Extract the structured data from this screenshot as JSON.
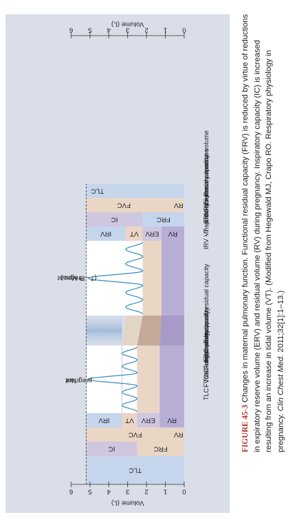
{
  "axis": {
    "title_left": "Volume (L)",
    "title_right": "Volume (L)",
    "ticks": [
      "0",
      "1",
      "2",
      "3",
      "4",
      "5",
      "6"
    ]
  },
  "panels": {
    "not_pregnant": {
      "label_line1": "Not",
      "label_line2": "pregnant",
      "boxes": [
        "IRV",
        "IC",
        "VT",
        "FVC",
        "ERV",
        "FRC",
        "RV",
        "RV",
        "TLC"
      ]
    },
    "pregnant": {
      "label_line1": "Pregnant",
      "label_line2": "(7 – 9 Mos.)",
      "boxes": [
        "IRV",
        "IC",
        "VT",
        "FVC",
        "ERV",
        "FRC",
        "RV",
        "RV",
        "TLC"
      ]
    }
  },
  "legend": {
    "left": [
      "TLC - Total lung capacity",
      "FVC - Forced vital capacity",
      "IC - Inspiratory capacity",
      "FRC - Functional residual capacity"
    ],
    "right": [
      "IRV - Inspiratory reserve capacity",
      "VT - Tidal volume",
      "ERV - Expiratory reserve volume",
      "RV - Residual volume"
    ]
  },
  "caption": {
    "label": "FIGURE 45-3",
    "text": " Changes in maternal pulmonary function. Functional residual capacity (FRV) is reduced by virtue of reductions in expiratory reserve volume (ERV) and residual volume (RV) during pregnancy. Inspiratory capacity (IC) is increased resulting from an increase in tidal volume (VT). (Modified from Hegewald MJ, Crapo RO. Respiratory physiology in pregnancy. ",
    "journal": "Clin Chest Med.",
    "tail": " 2011;32[1]:1–13.)"
  },
  "colors": {
    "panel_bg": "#d9dee8",
    "blue": "#c5d5ec",
    "tan": "#ead6c5",
    "purple": "#cfc6df",
    "purple_dark": "#b7aed5",
    "wave": "#3a8fbf"
  }
}
